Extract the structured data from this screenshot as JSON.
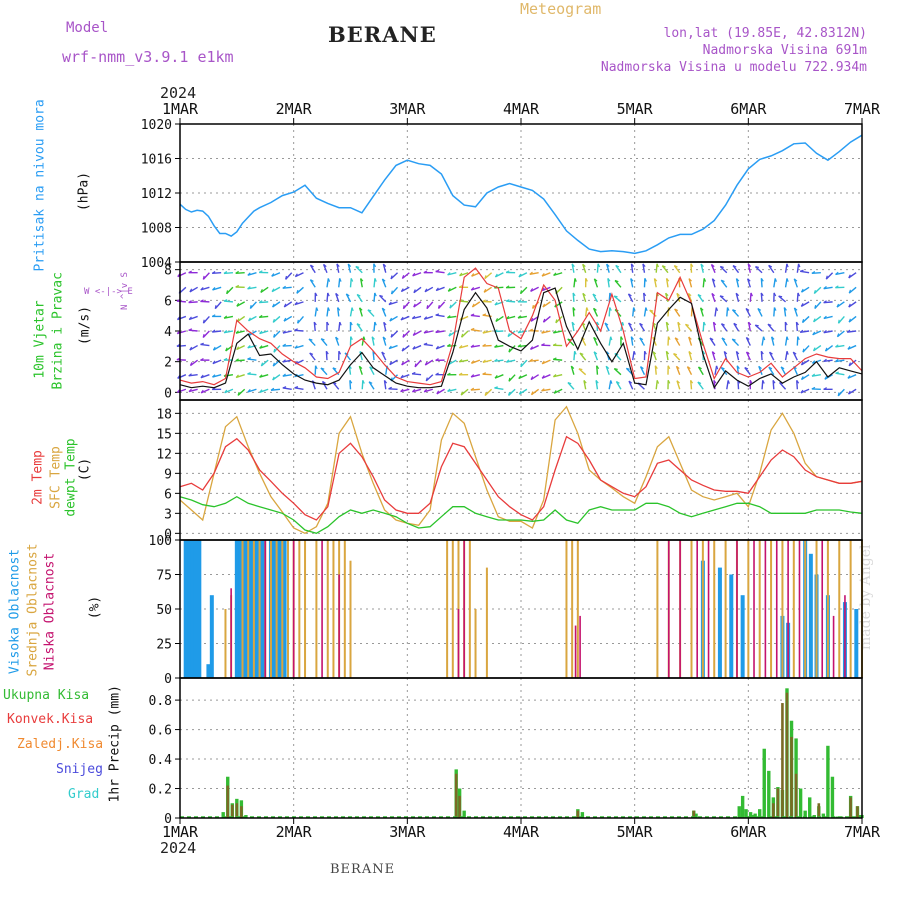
{
  "header": {
    "model_label": "Model",
    "model_name": "wrf-nmm_v3.9.1  e1km",
    "station": "BERANE",
    "meteogram": "Meteogram",
    "lonlat": "lon,lat (19.85E, 42.8312N)",
    "altitude": "Nadmorska Visina 691m",
    "model_altitude": "Nadmorska Visina u modelu 722.934m"
  },
  "time_axis": {
    "year": "2024",
    "labels": [
      "1MAR",
      "2MAR",
      "3MAR",
      "4MAR",
      "5MAR",
      "6MAR",
      "7MAR"
    ]
  },
  "footer": {
    "station": "BERANE",
    "credit": "made by Angel"
  },
  "colors": {
    "pressure": "#2a9df4",
    "temp2m": "#e83c3c",
    "sfc_temp": "#d9a640",
    "dewpt": "#2bc32b",
    "high_cloud": "#1f9be8",
    "mid_cloud": "#d9a640",
    "low_cloud": "#c4126e",
    "total_precip": "#33bb33",
    "conv_precip": "#e83c3c",
    "frozen": "#f08a30",
    "snow": "#4b4bdc",
    "hail": "#33cccc",
    "wind_speed": "#111111",
    "wind_gust": "#e83c3c"
  },
  "panels": {
    "pressure": {
      "label": "Pritisak na nivou mora",
      "unit": "(hPa)"
    },
    "wind": {
      "label1": "10m Vjetar",
      "label2": "Brzina i Pravac",
      "unit": "(m/s)",
      "compass": [
        "W",
        "<-",
        "|",
        "->",
        "E"
      ],
      "compass_vertical": [
        "N",
        "^",
        "|",
        "v",
        "S"
      ]
    },
    "temp": {
      "label_2m": "2m Temp",
      "label_sfc": "SFC Temp",
      "label_dew": "dewpt Temp",
      "unit": "(C)"
    },
    "cloud": {
      "label_high": "Visoka Oblacnost",
      "label_mid": "Srednja Oblacnost",
      "label_low": "Niska Oblacnost",
      "unit": "(%)"
    },
    "precip": {
      "legend": [
        "Ukupna Kisa",
        "Konvek.Kisa",
        "Zaledj.Kisa",
        "Snijeg",
        "Grad"
      ],
      "unit_label": "1hr Precip (mm)"
    }
  },
  "chart_data": [
    {
      "type": "line",
      "title": "Pritisak na nivou mora",
      "ylabel": "(hPa)",
      "ylim": [
        1004,
        1020
      ],
      "yticks": [
        1004,
        1008,
        1012,
        1016,
        1020
      ],
      "x_days": [
        0,
        0.05,
        0.1,
        0.15,
        0.2,
        0.25,
        0.3,
        0.35,
        0.4,
        0.45,
        0.5,
        0.55,
        0.6,
        0.65,
        0.7,
        0.8,
        0.9,
        1.0,
        1.1,
        1.2,
        1.3,
        1.4,
        1.5,
        1.6,
        1.7,
        1.8,
        1.9,
        2.0,
        2.1,
        2.2,
        2.3,
        2.4,
        2.5,
        2.6,
        2.7,
        2.8,
        2.9,
        3.0,
        3.1,
        3.2,
        3.3,
        3.4,
        3.5,
        3.6,
        3.7,
        3.8,
        3.9,
        4.0,
        4.1,
        4.2,
        4.3,
        4.4,
        4.5,
        4.6,
        4.7,
        4.8,
        4.9,
        5.0,
        5.1,
        5.2,
        5.3,
        5.4,
        5.5,
        5.6,
        5.7,
        5.8,
        5.9,
        6.0
      ],
      "series": [
        {
          "values": [
            1010.7,
            1010.1,
            1009.8,
            1010.0,
            1009.9,
            1009.3,
            1008.2,
            1007.3,
            1007.3,
            1007.0,
            1007.5,
            1008.5,
            1009.2,
            1009.9,
            1010.3,
            1010.9,
            1011.7,
            1012.1,
            1012.9,
            1011.4,
            1010.8,
            1010.3,
            1010.3,
            1009.7,
            1011.6,
            1013.5,
            1015.2,
            1015.8,
            1015.4,
            1015.2,
            1014.2,
            1011.7,
            1010.6,
            1010.4,
            1012.0,
            1012.7,
            1013.1,
            1012.7,
            1012.3,
            1011.3,
            1009.5,
            1007.6,
            1006.5,
            1005.5,
            1005.2,
            1005.3,
            1005.2,
            1005.0,
            1005.3,
            1006.0,
            1006.8,
            1007.2,
            1007.2,
            1007.8,
            1008.8,
            1010.6,
            1012.9,
            1014.8,
            1015.9,
            1016.3,
            1016.9,
            1017.7,
            1017.8,
            1016.6,
            1015.8,
            1016.8,
            1017.9,
            1018.7
          ]
        }
      ]
    },
    {
      "type": "line",
      "title": "10m Vjetar Brzina i Pravac",
      "ylabel": "(m/s)",
      "ylim": [
        -0.5,
        8.5
      ],
      "yticks": [
        0,
        2,
        4,
        6,
        8
      ],
      "x_days": [
        0,
        0.1,
        0.2,
        0.3,
        0.4,
        0.5,
        0.6,
        0.7,
        0.8,
        0.9,
        1.0,
        1.1,
        1.2,
        1.3,
        1.4,
        1.5,
        1.6,
        1.7,
        1.8,
        1.9,
        2.0,
        2.1,
        2.2,
        2.3,
        2.4,
        2.5,
        2.6,
        2.7,
        2.8,
        2.9,
        3.0,
        3.1,
        3.2,
        3.3,
        3.4,
        3.5,
        3.6,
        3.7,
        3.8,
        3.9,
        4.0,
        4.1,
        4.2,
        4.3,
        4.4,
        4.5,
        4.6,
        4.7,
        4.8,
        4.9,
        5.0,
        5.1,
        5.2,
        5.3,
        5.4,
        5.5,
        5.6,
        5.7,
        5.8,
        5.9,
        6.0
      ],
      "series": [
        {
          "name": "speed",
          "values": [
            0.5,
            0.3,
            0.4,
            0.3,
            0.6,
            3.2,
            3.8,
            2.4,
            2.5,
            1.8,
            1.2,
            0.8,
            0.6,
            0.5,
            0.8,
            1.8,
            2.6,
            1.6,
            1.1,
            0.6,
            0.4,
            0.3,
            0.3,
            0.4,
            2.6,
            5.4,
            6.5,
            5.5,
            3.4,
            3.0,
            2.7,
            3.4,
            6.5,
            6.8,
            4.3,
            2.8,
            4.6,
            3.2,
            2.0,
            3.2,
            0.6,
            0.5,
            4.5,
            5.4,
            6.2,
            5.8,
            2.5,
            0.3,
            1.4,
            0.8,
            0.4,
            0.9,
            1.2,
            0.6,
            1.0,
            1.3,
            2.0,
            1.0,
            1.6,
            1.4,
            1.2
          ]
        },
        {
          "name": "gust",
          "values": [
            0.8,
            0.6,
            0.7,
            0.5,
            0.9,
            4.7,
            4.0,
            3.5,
            3.2,
            2.5,
            2.0,
            1.6,
            1.0,
            0.9,
            1.3,
            3.0,
            3.5,
            2.7,
            1.8,
            1.0,
            0.7,
            0.6,
            0.5,
            0.7,
            3.2,
            7.5,
            8.1,
            7.1,
            6.8,
            4.0,
            3.5,
            5.0,
            7.0,
            6.0,
            3.0,
            4.0,
            5.2,
            4.0,
            6.4,
            4.0,
            0.9,
            1.0,
            6.5,
            6.0,
            7.5,
            5.8,
            3.2,
            0.9,
            2.2,
            1.3,
            1.0,
            1.3,
            1.9,
            1.0,
            1.6,
            2.2,
            2.5,
            2.3,
            2.2,
            2.2,
            1.4
          ]
        }
      ]
    },
    {
      "type": "line",
      "title": "Temperatura",
      "ylabel": "(C)",
      "ylim": [
        -1,
        20
      ],
      "yticks": [
        0,
        3,
        6,
        9,
        12,
        15,
        18
      ],
      "x_days": [
        0,
        0.1,
        0.2,
        0.3,
        0.4,
        0.5,
        0.6,
        0.7,
        0.8,
        0.9,
        1.0,
        1.1,
        1.2,
        1.3,
        1.4,
        1.5,
        1.6,
        1.7,
        1.8,
        1.9,
        2.0,
        2.1,
        2.2,
        2.3,
        2.4,
        2.5,
        2.6,
        2.7,
        2.8,
        2.9,
        3.0,
        3.1,
        3.2,
        3.3,
        3.4,
        3.5,
        3.6,
        3.7,
        3.8,
        3.9,
        4.0,
        4.1,
        4.2,
        4.3,
        4.4,
        4.5,
        4.6,
        4.7,
        4.8,
        4.9,
        5.0,
        5.1,
        5.2,
        5.3,
        5.4,
        5.5,
        5.6,
        5.7,
        5.8,
        5.9,
        6.0
      ],
      "series": [
        {
          "name": "2m Temp",
          "values": [
            7.0,
            7.5,
            6.5,
            9.0,
            13.0,
            14.2,
            12.5,
            9.5,
            7.8,
            6.0,
            4.5,
            2.8,
            2.0,
            4.0,
            12.0,
            13.5,
            11.5,
            8.5,
            5.0,
            3.5,
            3.0,
            3.0,
            4.5,
            10.0,
            13.5,
            13.0,
            10.5,
            8.0,
            5.5,
            4.0,
            2.8,
            2.0,
            4.0,
            9.5,
            14.5,
            13.5,
            11.0,
            8.0,
            7.0,
            6.0,
            5.5,
            7.0,
            10.5,
            11.0,
            9.5,
            8.0,
            7.2,
            6.5,
            6.3,
            6.3,
            6.0,
            8.5,
            11.0,
            12.5,
            11.5,
            9.5,
            8.5,
            8.0,
            7.5,
            7.5,
            7.8
          ]
        },
        {
          "name": "SFC Temp",
          "values": [
            5.0,
            3.5,
            2.0,
            9.0,
            16.0,
            17.5,
            13.0,
            9.0,
            5.5,
            3.2,
            0.8,
            0.0,
            1.0,
            4.5,
            15.0,
            17.5,
            12.0,
            7.5,
            3.5,
            2.0,
            1.5,
            1.2,
            3.5,
            14.0,
            18.0,
            16.5,
            11.5,
            6.5,
            2.5,
            1.8,
            1.8,
            0.8,
            5.0,
            17.0,
            19.0,
            15.0,
            9.5,
            8.0,
            6.8,
            5.5,
            4.5,
            8.5,
            13.0,
            14.5,
            10.5,
            6.5,
            5.5,
            5.0,
            5.5,
            6.0,
            4.0,
            9.0,
            15.5,
            18.0,
            15.0,
            10.5,
            8.5,
            8.0,
            7.5,
            7.5,
            7.8
          ]
        },
        {
          "name": "dewpt Temp",
          "values": [
            5.5,
            5.0,
            4.3,
            4.0,
            4.5,
            5.5,
            4.5,
            4.0,
            3.5,
            3.0,
            2.0,
            0.5,
            0.0,
            1.0,
            2.5,
            3.5,
            3.0,
            3.5,
            3.0,
            2.5,
            1.5,
            0.8,
            1.0,
            2.5,
            4.0,
            4.0,
            3.0,
            2.5,
            2.0,
            2.0,
            2.0,
            1.8,
            2.0,
            3.5,
            2.0,
            1.5,
            3.5,
            4.0,
            3.5,
            3.5,
            3.5,
            4.5,
            4.5,
            4.0,
            3.0,
            2.5,
            3.0,
            3.5,
            4.0,
            4.5,
            4.5,
            4.0,
            3.0,
            3.0,
            3.0,
            3.0,
            3.5,
            3.5,
            3.5,
            3.2,
            3.0
          ]
        }
      ]
    },
    {
      "type": "bar",
      "title": "Oblacnost",
      "ylabel": "(%)",
      "ylim": [
        0,
        100
      ],
      "yticks": [
        0,
        25,
        50,
        75,
        100
      ],
      "series": [
        {
          "name": "Visoka Oblacnost",
          "x_days": [
            0.05,
            0.08,
            0.11,
            0.14,
            0.17,
            0.25,
            0.28,
            0.35,
            0.5,
            0.53,
            0.56,
            0.59,
            0.62,
            0.65,
            0.68,
            0.71,
            0.74,
            0.8,
            0.83,
            0.86,
            0.89,
            0.92,
            4.6,
            4.75,
            4.85,
            4.95,
            5.3,
            5.35,
            5.5,
            5.55,
            5.6,
            5.7,
            5.85,
            5.95
          ],
          "values": [
            100,
            100,
            100,
            100,
            100,
            10,
            60,
            0,
            100,
            100,
            100,
            100,
            100,
            100,
            100,
            100,
            100,
            100,
            100,
            100,
            100,
            100,
            85,
            80,
            75,
            60,
            45,
            40,
            100,
            90,
            75,
            60,
            55,
            50
          ]
        },
        {
          "name": "Srednja Oblacnost",
          "x_days": [
            0.4,
            0.45,
            0.55,
            0.6,
            0.65,
            0.7,
            0.75,
            0.8,
            0.85,
            0.9,
            0.95,
            1.0,
            1.05,
            1.1,
            1.2,
            1.3,
            1.35,
            1.4,
            1.45,
            1.5,
            2.35,
            2.4,
            2.45,
            2.5,
            2.55,
            2.6,
            2.7,
            3.4,
            3.45,
            3.5,
            4.2,
            4.3,
            4.4,
            4.5,
            4.6,
            4.7,
            4.8,
            4.9,
            5.0,
            5.1,
            5.2,
            5.3,
            5.4,
            5.5,
            5.6,
            5.7,
            5.8,
            5.9,
            6.0
          ],
          "values": [
            50,
            60,
            100,
            100,
            100,
            100,
            100,
            100,
            100,
            100,
            100,
            100,
            100,
            100,
            100,
            100,
            100,
            100,
            100,
            85,
            100,
            100,
            100,
            100,
            100,
            50,
            80,
            100,
            100,
            100,
            100,
            100,
            100,
            100,
            100,
            100,
            100,
            100,
            100,
            100,
            100,
            100,
            100,
            100,
            100,
            100,
            100,
            100,
            100
          ]
        },
        {
          "name": "Niska Oblacnost",
          "x_days": [
            0.45,
            0.75,
            1.0,
            1.25,
            1.4,
            2.45,
            2.5,
            3.48,
            3.52,
            4.3,
            4.4,
            4.55,
            4.65,
            4.9,
            5.05,
            5.15,
            5.25,
            5.35,
            5.45,
            5.65,
            5.75,
            5.85
          ],
          "values": [
            65,
            100,
            100,
            100,
            75,
            50,
            100,
            38,
            45,
            100,
            100,
            100,
            100,
            100,
            100,
            100,
            100,
            100,
            100,
            100,
            45,
            60
          ]
        }
      ]
    },
    {
      "type": "bar",
      "title": "1hr Precip",
      "ylabel": "1hr Precip (mm)",
      "ylim": [
        0,
        0.95
      ],
      "yticks": [
        0,
        0.2,
        0.4,
        0.6,
        0.8
      ],
      "series": [
        {
          "name": "Ukupna Kisa",
          "x_days": [
            0.38,
            0.42,
            0.46,
            0.5,
            0.54,
            0.58,
            2.43,
            2.46,
            2.5,
            3.5,
            3.54,
            4.52,
            4.54,
            4.92,
            4.95,
            4.98,
            5.02,
            5.06,
            5.1,
            5.14,
            5.18,
            5.22,
            5.26,
            5.3,
            5.34,
            5.38,
            5.42,
            5.46,
            5.5,
            5.54,
            5.58,
            5.62,
            5.66,
            5.7,
            5.74,
            5.78,
            5.82,
            5.9,
            5.96,
            5.98,
            6.0,
            5.04
          ],
          "values": [
            0.04,
            0.28,
            0.1,
            0.13,
            0.12,
            0.02,
            0.33,
            0.2,
            0.05,
            0.06,
            0.04,
            0.05,
            0.03,
            0.08,
            0.15,
            0.06,
            0.04,
            0.03,
            0.06,
            0.47,
            0.32,
            0.14,
            0.21,
            0.19,
            0.88,
            0.66,
            0.54,
            0.2,
            0.05,
            0.14,
            0.02,
            0.08,
            0.03,
            0.49,
            0.28,
            0.01,
            0.01,
            0.15,
            0.08,
            0.02,
            0.02,
            0.02
          ]
        },
        {
          "name": "Konvek.Kisa",
          "x_days": [
            0.42,
            0.46,
            0.5,
            0.54,
            2.43,
            2.46,
            3.5,
            4.52,
            5.22,
            5.26,
            5.3,
            5.34,
            5.38,
            5.42,
            5.62,
            5.9,
            5.96
          ],
          "values": [
            0.22,
            0.09,
            0.1,
            0.08,
            0.3,
            0.15,
            0.05,
            0.05,
            0.1,
            0.2,
            0.78,
            0.85,
            0.55,
            0.3,
            0.1,
            0.14,
            0.08
          ]
        }
      ]
    }
  ]
}
